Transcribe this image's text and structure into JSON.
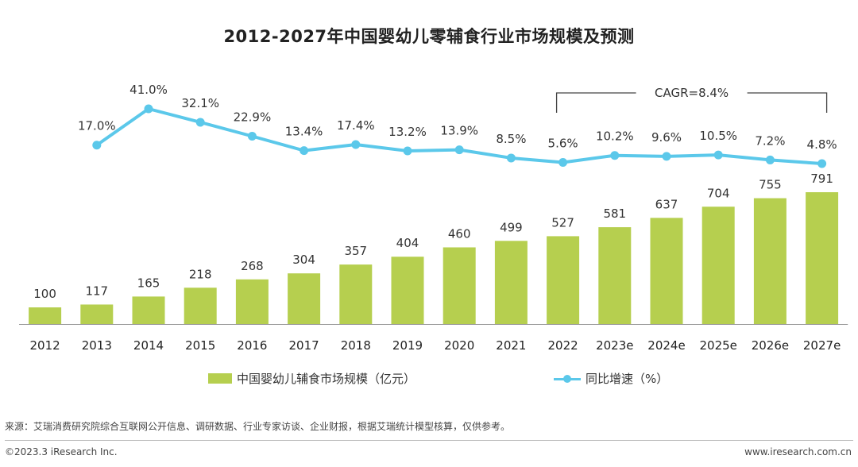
{
  "title": "2012-2027年中国婴幼儿零辅食行业市场规模及预测",
  "chart_data": {
    "type": "bar",
    "categories": [
      "2012",
      "2013",
      "2014",
      "2015",
      "2016",
      "2017",
      "2018",
      "2019",
      "2020",
      "2021",
      "2022",
      "2023e",
      "2024e",
      "2025e",
      "2026e",
      "2027e"
    ],
    "series": [
      {
        "name": "中国婴幼儿辅食市场规模（亿元）",
        "type": "bar",
        "values": [
          100,
          117,
          165,
          218,
          268,
          304,
          357,
          404,
          460,
          499,
          527,
          581,
          637,
          704,
          755,
          791
        ],
        "labels": [
          "100",
          "117",
          "165",
          "218",
          "268",
          "304",
          "357",
          "404",
          "460",
          "499",
          "527",
          "581",
          "637",
          "704",
          "755",
          "791"
        ]
      },
      {
        "name": "同比增速（%）",
        "type": "line",
        "values": [
          null,
          17.0,
          41.0,
          32.1,
          22.9,
          13.4,
          17.4,
          13.2,
          13.9,
          8.5,
          5.6,
          10.2,
          9.6,
          10.5,
          7.2,
          4.8
        ],
        "labels": [
          "",
          "17.0%",
          "41.0%",
          "32.1%",
          "22.9%",
          "13.4%",
          "17.4%",
          "13.2%",
          "13.9%",
          "8.5%",
          "5.6%",
          "10.2%",
          "9.6%",
          "10.5%",
          "7.2%",
          "4.8%"
        ]
      }
    ],
    "bar_ylim": [
      0,
      900
    ],
    "line_ylim": [
      0,
      45
    ],
    "annotation": "CAGR=8.4%",
    "annotation_range": [
      "2022",
      "2027e"
    ]
  },
  "colors": {
    "bar": "#b6cf4f",
    "line": "#5bc8ea",
    "axis": "#999999"
  },
  "legend": {
    "bar_label": "中国婴幼儿辅食市场规模（亿元）",
    "line_label": "同比增速（%）"
  },
  "footer": {
    "source": "来源：艾瑞消费研究院综合互联网公开信息、调研数据、行业专家访谈、企业财报，根据艾瑞统计模型核算，仅供参考。",
    "copyright": "©2023.3 iResearch Inc.",
    "website": "www.iresearch.com.cn"
  }
}
